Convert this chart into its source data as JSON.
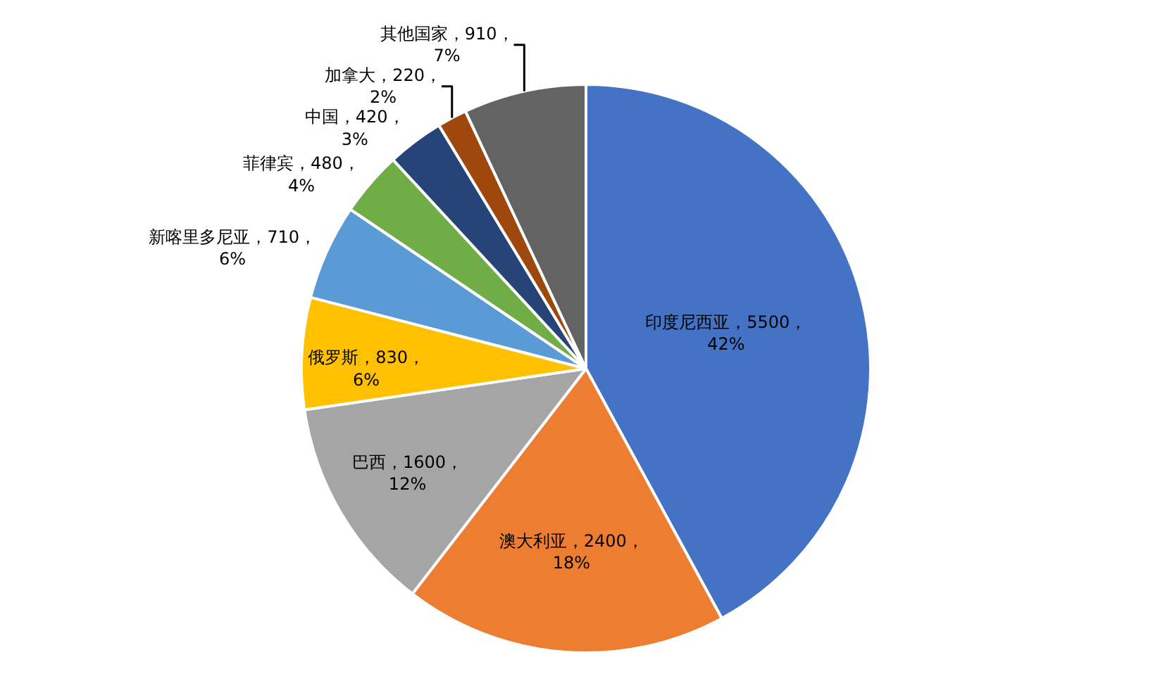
{
  "chart_data": {
    "type": "pie",
    "categories": [
      "印度尼西亚",
      "澳大利亚",
      "巴西",
      "俄罗斯",
      "新喀里多尼亚",
      "菲律宾",
      "中国",
      "加拿大",
      "其他国家"
    ],
    "values": [
      5500,
      2400,
      1600,
      830,
      710,
      480,
      420,
      220,
      910
    ],
    "colors": [
      "#4472c4",
      "#ed7d31",
      "#a5a5a5",
      "#ffc000",
      "#5b9bd5",
      "#70ad47",
      "#264478",
      "#9e480e",
      "#636363"
    ],
    "value_labels": [
      "，5500，42%",
      "，2400，18%",
      "，1600，12%",
      "，830，6%",
      "，710，6%",
      "，480，4%",
      "，420，3%",
      "，220，2%",
      "，910，7%"
    ],
    "legend": false
  }
}
